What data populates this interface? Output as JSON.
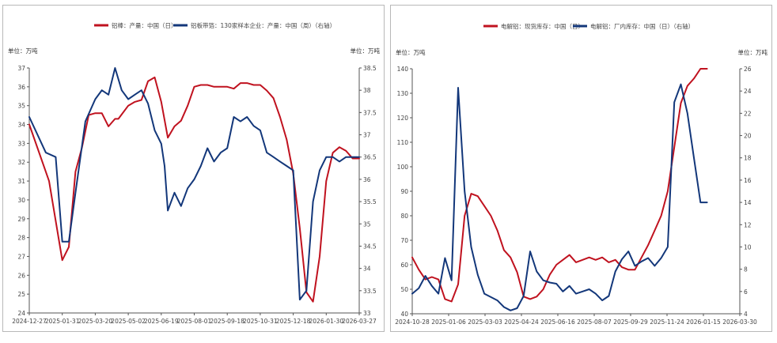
{
  "chart_data": [
    {
      "type": "line",
      "id": "left",
      "legend": [
        "铝棒：产量：中国（日）",
        "铝板带箔：130家样本企业：产量：中国（周）（右轴）"
      ],
      "unit_left": "单位：万吨",
      "unit_right": "单位：万吨",
      "colors": [
        "#c0121f",
        "#13377a"
      ],
      "x_ticks": [
        "2024-12-27",
        "2025-01-31",
        "2025-03-20",
        "2025-05-02",
        "2025-06-19",
        "2025-08-01",
        "2025-09-18",
        "2025-10-31",
        "2025-12-18",
        "2026-01-30",
        "2026-03-27"
      ],
      "y_left": {
        "min": 24,
        "max": 37,
        "ticks": [
          "24",
          "25",
          "26",
          "27",
          "28",
          "29",
          "30",
          "31",
          "32",
          "33",
          "34",
          "35",
          "36",
          "37"
        ]
      },
      "y_right": {
        "min": 33,
        "max": 38.5,
        "ticks": [
          "33",
          "33.5",
          "34",
          "34.5",
          "35",
          "35.5",
          "36",
          "36.5",
          "37",
          "37.5",
          "38",
          "38.5"
        ]
      },
      "series": [
        {
          "name": "铝棒：产量：中国（日）",
          "axis": "left",
          "x": [
            0,
            0.6,
            1,
            1.2,
            1.4,
            1.6,
            1.8,
            2,
            2.2,
            2.4,
            2.6,
            2.7,
            3.0,
            3.2,
            3.4,
            3.6,
            3.8,
            4.0,
            4.2,
            4.4,
            4.6,
            4.8,
            5.0,
            5.2,
            5.4,
            5.6,
            5.8,
            6.0,
            6.2,
            6.4,
            6.6,
            6.8,
            7.0,
            7.2,
            7.4,
            7.6,
            7.8,
            8.0,
            8.2,
            8.4,
            8.6,
            8.8,
            9.0,
            9.2,
            9.4,
            9.6,
            9.8,
            10.0
          ],
          "y": [
            34.0,
            31.0,
            26.8,
            27.5,
            31.5,
            32.8,
            34.5,
            34.6,
            34.6,
            33.9,
            34.3,
            34.3,
            35.0,
            35.2,
            35.3,
            36.3,
            36.5,
            35.2,
            33.3,
            33.9,
            34.2,
            35.0,
            36.0,
            36.1,
            36.1,
            36.0,
            36.0,
            36.0,
            35.9,
            36.2,
            36.2,
            36.1,
            36.1,
            35.8,
            35.4,
            34.4,
            33.2,
            31.4,
            28.5,
            25.1,
            24.6,
            27.0,
            31.0,
            32.5,
            32.8,
            32.6,
            32.2,
            32.2
          ]
        },
        {
          "name": "铝板带箔：130家样本企业：产量：中国（周）（右轴）",
          "axis": "right",
          "x": [
            0,
            0.5,
            0.8,
            1,
            1.2,
            1.4,
            1.7,
            2.0,
            2.2,
            2.4,
            2.6,
            2.8,
            3.0,
            3.2,
            3.4,
            3.6,
            3.8,
            4.0,
            4.1,
            4.2,
            4.4,
            4.6,
            4.8,
            5.0,
            5.2,
            5.4,
            5.6,
            5.8,
            6.0,
            6.2,
            6.4,
            6.6,
            6.8,
            7.0,
            7.2,
            7.4,
            7.6,
            7.8,
            8.0,
            8.2,
            8.4,
            8.6,
            8.8,
            9.0,
            9.2,
            9.4,
            9.6,
            9.8,
            10.0
          ],
          "y": [
            37.4,
            36.6,
            36.5,
            34.6,
            34.6,
            35.7,
            37.3,
            37.8,
            38.0,
            37.9,
            38.5,
            38.0,
            37.8,
            37.9,
            38.0,
            37.7,
            37.1,
            36.8,
            36.3,
            35.3,
            35.7,
            35.4,
            35.8,
            36.0,
            36.3,
            36.7,
            36.4,
            36.6,
            36.7,
            37.4,
            37.3,
            37.4,
            37.2,
            37.1,
            36.6,
            36.5,
            36.4,
            36.3,
            36.2,
            33.3,
            33.5,
            35.5,
            36.2,
            36.5,
            36.5,
            36.4,
            36.5,
            36.5,
            36.5
          ]
        }
      ]
    },
    {
      "type": "line",
      "id": "right",
      "legend": [
        "电解铝：现货库存：中国（日）",
        "电解铝：厂内库存：中国（日）（右轴）"
      ],
      "unit_left": "单位：万吨",
      "unit_right": "单位：万吨",
      "colors": [
        "#c0121f",
        "#13377a"
      ],
      "x_ticks": [
        "2024-10-28",
        "2025-01-06",
        "2025-03-03",
        "2025-04-24",
        "2025-06-16",
        "2025-08-07",
        "2025-09-29",
        "2025-11-24",
        "2026-01-15",
        "2026-03-30"
      ],
      "y_left": {
        "min": 40,
        "max": 140,
        "ticks": [
          "40",
          "50",
          "60",
          "70",
          "80",
          "90",
          "100",
          "110",
          "120",
          "130",
          "140"
        ]
      },
      "y_right": {
        "min": 4,
        "max": 26,
        "ticks": [
          "4",
          "6",
          "8",
          "10",
          "12",
          "14",
          "16",
          "18",
          "20",
          "22",
          "24",
          "26"
        ]
      },
      "series": [
        {
          "name": "电解铝：现货库存：中国（日）",
          "axis": "left",
          "x": [
            0,
            0.2,
            0.4,
            0.6,
            0.8,
            1.0,
            1.2,
            1.4,
            1.6,
            1.8,
            2.0,
            2.2,
            2.4,
            2.6,
            2.8,
            3.0,
            3.2,
            3.4,
            3.6,
            3.8,
            4.0,
            4.2,
            4.4,
            4.6,
            4.8,
            5.0,
            5.2,
            5.4,
            5.6,
            5.8,
            6.0,
            6.2,
            6.4,
            6.6,
            6.8,
            7.0,
            7.2,
            7.4,
            7.6,
            7.8,
            8.0,
            8.2,
            8.4,
            8.6,
            8.8,
            9.0
          ],
          "y": [
            63,
            58,
            54,
            55,
            54,
            46,
            45,
            52,
            80,
            89,
            88,
            84,
            80,
            74,
            66,
            63,
            57,
            47,
            46,
            47,
            50,
            56,
            60,
            62,
            64,
            61,
            62,
            63,
            62,
            63,
            61,
            62,
            59,
            58,
            58,
            63,
            68,
            74,
            80,
            90,
            108,
            126,
            133,
            136,
            140,
            140
          ]
        },
        {
          "name": "电解铝：厂内库存：中国（日）（右轴）",
          "axis": "right",
          "x": [
            0,
            0.2,
            0.4,
            0.6,
            0.8,
            1.0,
            1.2,
            1.4,
            1.6,
            1.8,
            2.0,
            2.2,
            2.4,
            2.6,
            2.8,
            3.0,
            3.2,
            3.4,
            3.6,
            3.8,
            4.0,
            4.2,
            4.4,
            4.6,
            4.8,
            5.0,
            5.2,
            5.4,
            5.6,
            5.8,
            6.0,
            6.2,
            6.4,
            6.6,
            6.8,
            7.0,
            7.2,
            7.4,
            7.6,
            7.8,
            8.0,
            8.2,
            8.4,
            8.6,
            8.8,
            9.0
          ],
          "y": [
            5.8,
            6.3,
            7.4,
            6.5,
            5.8,
            9.0,
            7.0,
            24.3,
            15.0,
            10.0,
            7.5,
            5.8,
            5.5,
            5.2,
            4.6,
            4.3,
            4.5,
            5.6,
            9.6,
            7.8,
            7.0,
            6.8,
            6.7,
            6.0,
            6.5,
            5.8,
            6.0,
            6.2,
            5.8,
            5.2,
            5.6,
            7.8,
            8.9,
            9.6,
            8.3,
            8.7,
            9.0,
            8.3,
            9.0,
            10.0,
            23.0,
            24.6,
            22.0,
            18.0,
            14.0,
            14.0
          ]
        }
      ]
    }
  ]
}
